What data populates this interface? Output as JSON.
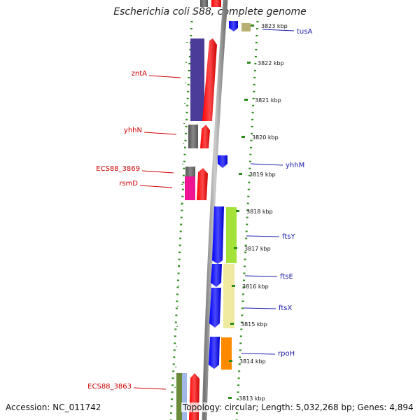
{
  "title": "Escherichia coli S88, complete genome",
  "footer": {
    "accession": "Accession: NC_011742",
    "summary": "Topology: circular; Length: 5,032,268 bp; Genes: 4,894"
  },
  "ticks": [
    {
      "label": "3823 kbp"
    },
    {
      "label": "3822 kbp"
    },
    {
      "label": "3821 kbp"
    },
    {
      "label": "3820 kbp"
    },
    {
      "label": "3819 kbp"
    },
    {
      "label": "3818 kbp"
    },
    {
      "label": "3817 kbp"
    },
    {
      "label": "3816 kbp"
    },
    {
      "label": "3815 kbp"
    },
    {
      "label": "3814 kbp"
    },
    {
      "label": "3813 kbp"
    }
  ],
  "genes": [
    {
      "name": "tusA",
      "strand": "reverse",
      "color": "#1a1aaa"
    },
    {
      "name": "zntA",
      "strand": "forward",
      "color": "#cc0000"
    },
    {
      "name": "yhhN",
      "strand": "forward",
      "color": "#cc0000"
    },
    {
      "name": "yhhM",
      "strand": "reverse",
      "color": "#1a1aaa"
    },
    {
      "name": "ECS88_3869",
      "strand": "forward",
      "color": "#cc0000"
    },
    {
      "name": "rsmD",
      "strand": "forward",
      "color": "#cc0000"
    },
    {
      "name": "ftsY",
      "strand": "reverse",
      "color": "#1a1aaa"
    },
    {
      "name": "ftsE",
      "strand": "reverse",
      "color": "#1a1aaa"
    },
    {
      "name": "ftsX",
      "strand": "reverse",
      "color": "#1a1aaa"
    },
    {
      "name": "rpoH",
      "strand": "reverse",
      "color": "#1a1aaa"
    },
    {
      "name": "ECS88_3863",
      "strand": "forward",
      "color": "#cc0000"
    }
  ],
  "colors": {
    "cds_forward": "#ff0000",
    "cds_reverse": "#0000ff",
    "backbone": "#999999",
    "gc_dots": "#2a8a1a"
  }
}
